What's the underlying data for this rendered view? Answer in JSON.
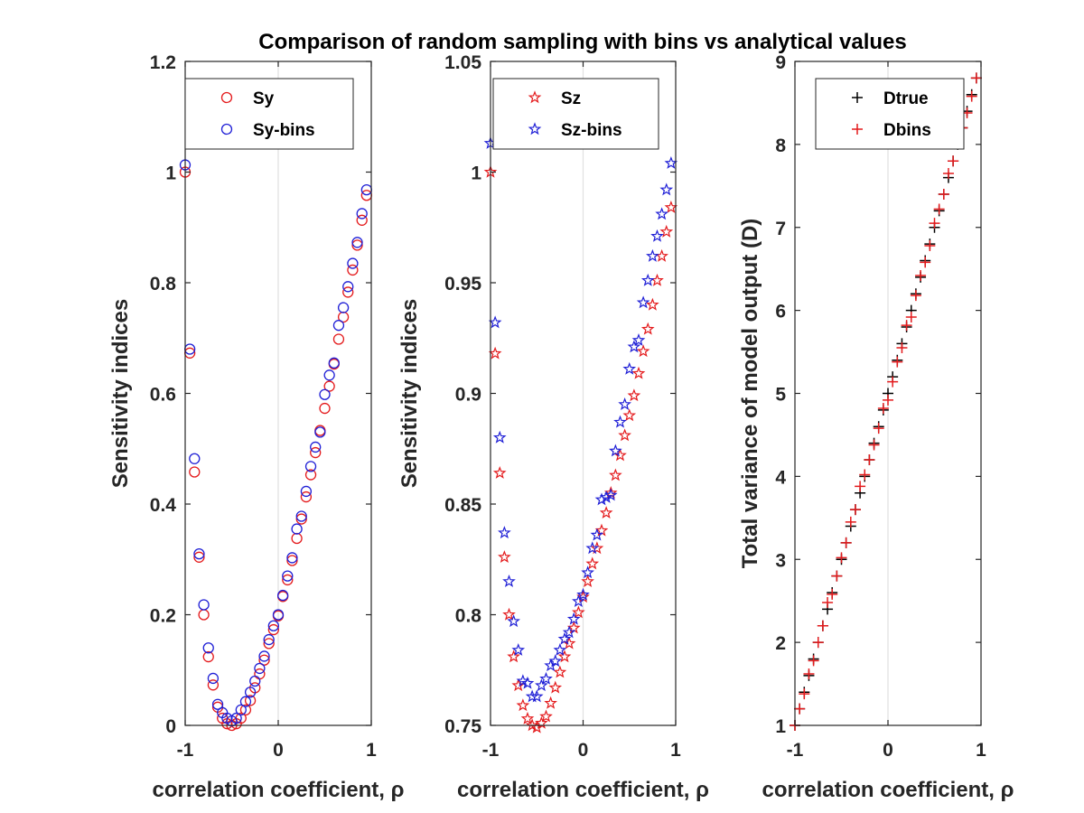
{
  "figure": {
    "title": "Comparison of random sampling with bins vs analytical values"
  },
  "colors": {
    "red": "#e41a1c",
    "blue": "#1f1fd6",
    "black": "#000000",
    "grid": "#e0e0e0",
    "axis": "#262626"
  },
  "chart_data": [
    {
      "type": "scatter",
      "xlabel": "correlation coefficient, ρ",
      "ylabel": "Sensitivity indices",
      "xlim": [
        -1,
        1
      ],
      "ylim": [
        0,
        1.2
      ],
      "xticks": [
        -1,
        0,
        1
      ],
      "yticks": [
        0,
        0.2,
        0.4,
        0.6,
        0.8,
        1,
        1.2
      ],
      "ytick_labels": [
        "0",
        "0.2",
        "0.4",
        "0.6",
        "0.8",
        "1",
        "1.2"
      ],
      "grid": "vertical at x=0",
      "legend": "top",
      "series": [
        {
          "name": "Sy",
          "marker": "circle",
          "color": "red",
          "x": [
            -1,
            -0.95,
            -0.9,
            -0.85,
            -0.8,
            -0.75,
            -0.7,
            -0.65,
            -0.6,
            -0.55,
            -0.5,
            -0.45,
            -0.4,
            -0.35,
            -0.3,
            -0.25,
            -0.2,
            -0.15,
            -0.1,
            -0.05,
            0,
            0.05,
            0.1,
            0.15,
            0.2,
            0.25,
            0.3,
            0.35,
            0.4,
            0.45,
            0.5,
            0.55,
            0.6,
            0.65,
            0.7,
            0.75,
            0.8,
            0.85,
            0.9,
            0.95
          ],
          "y": [
            1.0,
            0.673,
            0.458,
            0.304,
            0.2,
            0.124,
            0.073,
            0.033,
            0.013,
            0.003,
            0.0,
            0.003,
            0.013,
            0.028,
            0.045,
            0.068,
            0.093,
            0.118,
            0.148,
            0.173,
            0.198,
            0.233,
            0.263,
            0.298,
            0.338,
            0.373,
            0.413,
            0.453,
            0.493,
            0.533,
            0.573,
            0.613,
            0.653,
            0.698,
            0.738,
            0.783,
            0.823,
            0.868,
            0.913,
            0.958
          ]
        },
        {
          "name": "Sy-bins",
          "marker": "circle",
          "color": "blue",
          "x": [
            -1,
            -0.95,
            -0.9,
            -0.85,
            -0.8,
            -0.75,
            -0.7,
            -0.65,
            -0.6,
            -0.55,
            -0.5,
            -0.45,
            -0.4,
            -0.35,
            -0.3,
            -0.25,
            -0.2,
            -0.15,
            -0.1,
            -0.05,
            0,
            0.05,
            0.1,
            0.15,
            0.2,
            0.25,
            0.3,
            0.35,
            0.4,
            0.45,
            0.5,
            0.55,
            0.6,
            0.65,
            0.7,
            0.75,
            0.8,
            0.85,
            0.9,
            0.95
          ],
          "y": [
            1.013,
            0.68,
            0.482,
            0.31,
            0.218,
            0.14,
            0.085,
            0.038,
            0.023,
            0.013,
            0.008,
            0.013,
            0.028,
            0.043,
            0.06,
            0.08,
            0.103,
            0.125,
            0.155,
            0.18,
            0.2,
            0.235,
            0.27,
            0.303,
            0.355,
            0.378,
            0.423,
            0.468,
            0.503,
            0.53,
            0.598,
            0.633,
            0.655,
            0.723,
            0.755,
            0.793,
            0.835,
            0.873,
            0.925,
            0.968
          ]
        }
      ]
    },
    {
      "type": "scatter",
      "xlabel": "correlation coefficient, ρ",
      "ylabel": "Sensitivity indices",
      "xlim": [
        -1,
        1
      ],
      "ylim": [
        0.75,
        1.05
      ],
      "xticks": [
        -1,
        0,
        1
      ],
      "yticks": [
        0.75,
        0.8,
        0.85,
        0.9,
        0.95,
        1,
        1.05
      ],
      "ytick_labels": [
        "0.75",
        "0.8",
        "0.85",
        "0.9",
        "0.95",
        "1",
        "1.05"
      ],
      "grid": "vertical at x=0",
      "legend": "top",
      "series": [
        {
          "name": "Sz",
          "marker": "pentagram",
          "color": "red",
          "x": [
            -1,
            -0.95,
            -0.9,
            -0.85,
            -0.8,
            -0.75,
            -0.7,
            -0.65,
            -0.6,
            -0.55,
            -0.5,
            -0.45,
            -0.4,
            -0.35,
            -0.3,
            -0.25,
            -0.2,
            -0.15,
            -0.1,
            -0.05,
            0,
            0.05,
            0.1,
            0.15,
            0.2,
            0.25,
            0.3,
            0.35,
            0.4,
            0.45,
            0.5,
            0.55,
            0.6,
            0.65,
            0.7,
            0.75,
            0.8,
            0.85,
            0.9,
            0.95
          ],
          "y": [
            1.0,
            0.918,
            0.864,
            0.826,
            0.8,
            0.781,
            0.768,
            0.759,
            0.753,
            0.75,
            0.749,
            0.751,
            0.754,
            0.76,
            0.767,
            0.774,
            0.781,
            0.787,
            0.794,
            0.801,
            0.808,
            0.815,
            0.823,
            0.83,
            0.838,
            0.846,
            0.855,
            0.863,
            0.872,
            0.881,
            0.89,
            0.899,
            0.909,
            0.919,
            0.929,
            0.94,
            0.951,
            0.962,
            0.973,
            0.984
          ]
        },
        {
          "name": "Sz-bins",
          "marker": "pentagram",
          "color": "blue",
          "x": [
            -1,
            -0.95,
            -0.9,
            -0.85,
            -0.8,
            -0.75,
            -0.7,
            -0.65,
            -0.6,
            -0.55,
            -0.5,
            -0.45,
            -0.4,
            -0.35,
            -0.3,
            -0.25,
            -0.2,
            -0.15,
            -0.1,
            -0.05,
            0,
            0.05,
            0.1,
            0.15,
            0.2,
            0.25,
            0.3,
            0.35,
            0.4,
            0.45,
            0.5,
            0.55,
            0.6,
            0.65,
            0.7,
            0.75,
            0.8,
            0.85,
            0.9,
            0.95
          ],
          "y": [
            1.013,
            0.932,
            0.88,
            0.837,
            0.815,
            0.797,
            0.784,
            0.77,
            0.769,
            0.763,
            0.763,
            0.768,
            0.771,
            0.777,
            0.779,
            0.784,
            0.789,
            0.792,
            0.798,
            0.806,
            0.809,
            0.819,
            0.83,
            0.836,
            0.852,
            0.853,
            0.854,
            0.874,
            0.887,
            0.895,
            0.911,
            0.921,
            0.924,
            0.941,
            0.951,
            0.962,
            0.971,
            0.981,
            0.992,
            1.004
          ]
        }
      ]
    },
    {
      "type": "scatter",
      "xlabel": "correlation coefficient, ρ",
      "ylabel": "Total variance of model output (D)",
      "xlim": [
        -1,
        1
      ],
      "ylim": [
        1,
        9
      ],
      "xticks": [
        -1,
        0,
        1
      ],
      "yticks": [
        1,
        2,
        3,
        4,
        5,
        6,
        7,
        8,
        9
      ],
      "ytick_labels": [
        "1",
        "2",
        "3",
        "4",
        "5",
        "6",
        "7",
        "8",
        "9"
      ],
      "grid": "vertical at x=0",
      "legend": "top",
      "series": [
        {
          "name": "Dtrue",
          "marker": "plus",
          "color": "black",
          "x": [
            -1,
            -0.95,
            -0.9,
            -0.85,
            -0.8,
            -0.75,
            -0.7,
            -0.65,
            -0.6,
            -0.55,
            -0.5,
            -0.45,
            -0.4,
            -0.35,
            -0.3,
            -0.25,
            -0.2,
            -0.15,
            -0.1,
            -0.05,
            0,
            0.05,
            0.1,
            0.15,
            0.2,
            0.25,
            0.3,
            0.35,
            0.4,
            0.45,
            0.5,
            0.55,
            0.6,
            0.65,
            0.7,
            0.75,
            0.8,
            0.85,
            0.9,
            0.95
          ],
          "y": [
            1.0,
            1.2,
            1.4,
            1.6,
            1.8,
            2.0,
            2.2,
            2.4,
            2.6,
            2.8,
            3.0,
            3.2,
            3.4,
            3.6,
            3.8,
            4.0,
            4.2,
            4.4,
            4.6,
            4.8,
            5.0,
            5.2,
            5.4,
            5.6,
            5.8,
            6.0,
            6.2,
            6.4,
            6.6,
            6.8,
            7.0,
            7.2,
            7.4,
            7.6,
            7.8,
            8.0,
            8.2,
            8.4,
            8.6,
            8.8
          ]
        },
        {
          "name": "Dbins",
          "marker": "plus",
          "color": "red",
          "x": [
            -1,
            -0.95,
            -0.9,
            -0.85,
            -0.8,
            -0.75,
            -0.7,
            -0.65,
            -0.6,
            -0.55,
            -0.5,
            -0.45,
            -0.4,
            -0.35,
            -0.3,
            -0.25,
            -0.2,
            -0.15,
            -0.1,
            -0.05,
            0,
            0.05,
            0.1,
            0.15,
            0.2,
            0.25,
            0.3,
            0.35,
            0.4,
            0.45,
            0.5,
            0.55,
            0.6,
            0.65,
            0.7,
            0.75,
            0.8,
            0.85,
            0.9,
            0.95
          ],
          "y": [
            1.0,
            1.2,
            1.38,
            1.62,
            1.78,
            2.0,
            2.2,
            2.48,
            2.58,
            2.8,
            3.02,
            3.2,
            3.45,
            3.6,
            3.88,
            4.02,
            4.2,
            4.38,
            4.58,
            4.82,
            4.92,
            5.14,
            5.38,
            5.55,
            5.82,
            5.92,
            6.18,
            6.42,
            6.58,
            6.78,
            7.05,
            7.22,
            7.4,
            7.65,
            7.8,
            8.02,
            8.2,
            8.38,
            8.58,
            8.8
          ]
        }
      ]
    }
  ]
}
